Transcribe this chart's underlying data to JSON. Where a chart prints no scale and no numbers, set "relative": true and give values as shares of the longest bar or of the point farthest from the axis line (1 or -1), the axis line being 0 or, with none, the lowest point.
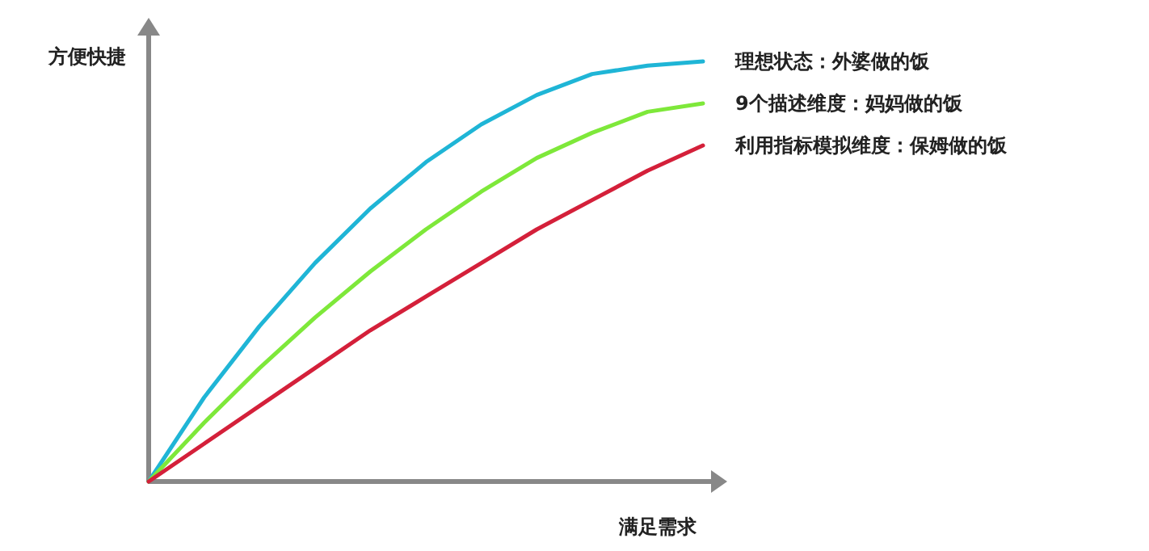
{
  "chart_data": {
    "type": "line",
    "relative": true,
    "xlabel": "满足需求",
    "ylabel": "方便快捷",
    "categories": [
      null,
      null,
      null,
      null,
      null,
      null,
      null,
      null,
      null,
      null,
      null
    ],
    "series": [
      {
        "name": "理想状态：外婆做的饭",
        "color": "#1fb5d6",
        "values": [
          0,
          0.2,
          0.37,
          0.52,
          0.65,
          0.76,
          0.85,
          0.92,
          0.97,
          0.99,
          1.0
        ]
      },
      {
        "name": "9个描述维度：妈妈做的饭",
        "color": "#7ee83a",
        "values": [
          0,
          0.14,
          0.27,
          0.39,
          0.5,
          0.6,
          0.69,
          0.77,
          0.83,
          0.88,
          0.9
        ]
      },
      {
        "name": "利用指标模拟维度：保姆做的饭",
        "color": "#d4203a",
        "values": [
          0,
          0.09,
          0.18,
          0.27,
          0.36,
          0.44,
          0.52,
          0.6,
          0.67,
          0.74,
          0.8
        ]
      }
    ]
  }
}
